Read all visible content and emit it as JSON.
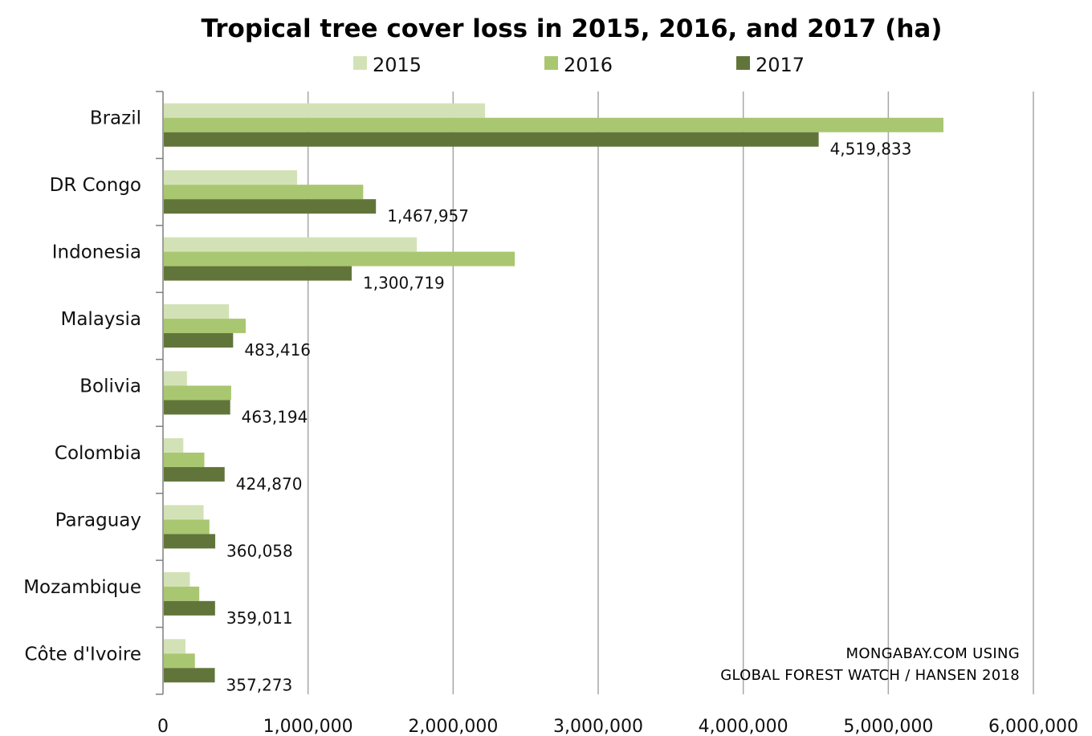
{
  "chart_data": {
    "type": "bar",
    "orientation": "horizontal",
    "title": "Tropical tree cover loss in 2015, 2016, and 2017 (ha)",
    "categories": [
      "Brazil",
      "DR Congo",
      "Indonesia",
      "Malaysia",
      "Bolivia",
      "Colombia",
      "Paraguay",
      "Mozambique",
      "Côte d'Ivoire"
    ],
    "series": [
      {
        "name": "2015",
        "color": "#d3e2b6",
        "values": [
          2220000,
          925000,
          1750000,
          455000,
          165000,
          140000,
          280000,
          185000,
          155000
        ]
      },
      {
        "name": "2016",
        "color": "#a9c770",
        "values": [
          5380000,
          1380000,
          2425000,
          570000,
          470000,
          285000,
          320000,
          250000,
          220000
        ]
      },
      {
        "name": "2017",
        "color": "#61753a",
        "values": [
          4519833,
          1467957,
          1300719,
          483416,
          463194,
          424870,
          360058,
          359011,
          357273
        ]
      }
    ],
    "data_labels": {
      "series": "2017",
      "labels": [
        "4,519,833",
        "1,467,957",
        "1,300,719",
        "483,416",
        "463,194",
        "424,870",
        "360,058",
        "359,011",
        "357,273"
      ]
    },
    "xlim": [
      0,
      6000000
    ],
    "xticks": [
      0,
      1000000,
      2000000,
      3000000,
      4000000,
      5000000,
      6000000
    ],
    "xtick_labels": [
      "0",
      "1,000,000",
      "2,000,000",
      "3,000,000",
      "4,000,000",
      "5,000,000",
      "6,000,000"
    ],
    "xlabel": "",
    "ylabel": "",
    "grid": "vertical",
    "legend_position": "top"
  },
  "source_note": {
    "line1": "MONGABAY.COM USING",
    "line2": "GLOBAL FOREST WATCH / HANSEN 2018"
  },
  "colors": {
    "grid": "#a6a6a6",
    "axis": "#7f7f7f"
  }
}
